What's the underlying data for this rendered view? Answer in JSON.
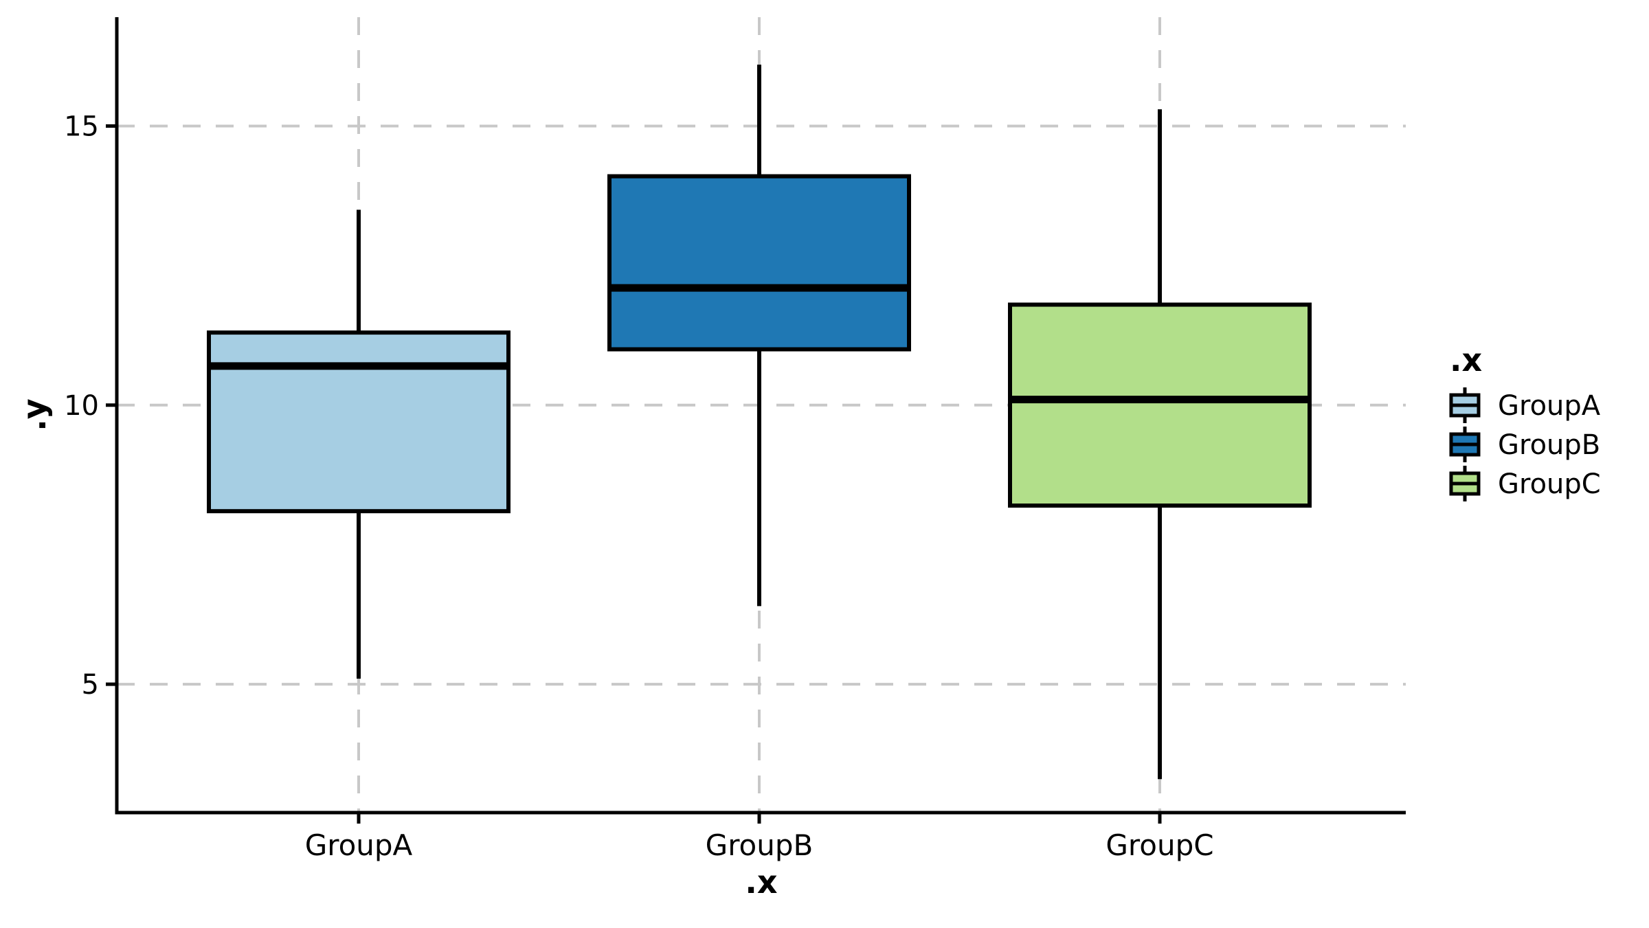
{
  "chart_data": {
    "type": "boxplot",
    "title": "",
    "xlabel": ".x",
    "ylabel": ".y",
    "categories": [
      "GroupA",
      "GroupB",
      "GroupC"
    ],
    "series": [
      {
        "name": "GroupA",
        "color": "#a6cee3",
        "whisker_low": 5.1,
        "q1": 8.1,
        "median": 10.7,
        "q3": 11.3,
        "whisker_high": 13.5
      },
      {
        "name": "GroupB",
        "color": "#1f78b4",
        "whisker_low": 6.4,
        "q1": 11.0,
        "median": 12.1,
        "q3": 14.1,
        "whisker_high": 16.1
      },
      {
        "name": "GroupC",
        "color": "#b2df8a",
        "whisker_low": 3.3,
        "q1": 8.2,
        "median": 10.1,
        "q3": 11.8,
        "whisker_high": 15.3
      }
    ],
    "y_ticks": [
      5,
      10,
      15
    ],
    "ylim": [
      2.7,
      16.95
    ],
    "grid": "dashed horizontal and vertical",
    "legend": {
      "title": ".x",
      "position": "right",
      "entries": [
        "GroupA",
        "GroupB",
        "GroupC"
      ]
    }
  },
  "styles": {
    "background": "#ffffff",
    "axis_color": "#000000",
    "grid_color": "#c8c8c8",
    "box_border_color": "#000000",
    "median_color": "#000000"
  }
}
